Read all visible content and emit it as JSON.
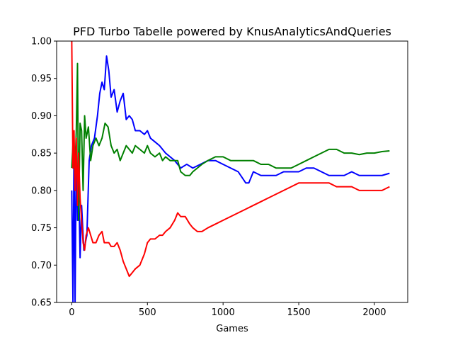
{
  "chart_data": {
    "type": "line",
    "title": "PFD Turbo Tabelle powered by KnusAnalyticsAndQueries",
    "xlabel": "Games",
    "ylabel": "",
    "xlim": [
      -100,
      2220
    ],
    "ylim": [
      0.65,
      1.0
    ],
    "xticks": [
      0,
      500,
      1000,
      1500,
      2000
    ],
    "yticks": [
      0.65,
      0.7,
      0.75,
      0.8,
      0.85,
      0.9,
      0.95,
      1.0
    ],
    "xtick_labels": [
      "0",
      "500",
      "1000",
      "1500",
      "2000"
    ],
    "ytick_labels": [
      "0.65",
      "0.70",
      "0.75",
      "0.80",
      "0.85",
      "0.90",
      "0.95",
      "1.00"
    ],
    "grid": false,
    "legend": "none",
    "series": [
      {
        "color": "#0000ff",
        "points": [
          [
            0,
            0.8
          ],
          [
            8,
            0.65
          ],
          [
            15,
            0.86
          ],
          [
            22,
            0.65
          ],
          [
            30,
            0.86
          ],
          [
            38,
            0.76
          ],
          [
            45,
            0.82
          ],
          [
            55,
            0.71
          ],
          [
            65,
            0.78
          ],
          [
            80,
            0.72
          ],
          [
            100,
            0.74
          ],
          [
            115,
            0.84
          ],
          [
            130,
            0.86
          ],
          [
            150,
            0.87
          ],
          [
            170,
            0.9
          ],
          [
            185,
            0.93
          ],
          [
            200,
            0.945
          ],
          [
            215,
            0.935
          ],
          [
            230,
            0.98
          ],
          [
            245,
            0.96
          ],
          [
            260,
            0.925
          ],
          [
            280,
            0.935
          ],
          [
            300,
            0.905
          ],
          [
            320,
            0.92
          ],
          [
            340,
            0.93
          ],
          [
            360,
            0.895
          ],
          [
            380,
            0.9
          ],
          [
            400,
            0.895
          ],
          [
            420,
            0.88
          ],
          [
            450,
            0.88
          ],
          [
            480,
            0.875
          ],
          [
            500,
            0.88
          ],
          [
            520,
            0.87
          ],
          [
            550,
            0.865
          ],
          [
            580,
            0.86
          ],
          [
            600,
            0.855
          ],
          [
            620,
            0.85
          ],
          [
            650,
            0.845
          ],
          [
            680,
            0.84
          ],
          [
            700,
            0.835
          ],
          [
            720,
            0.83
          ],
          [
            760,
            0.835
          ],
          [
            800,
            0.83
          ],
          [
            850,
            0.835
          ],
          [
            900,
            0.84
          ],
          [
            950,
            0.84
          ],
          [
            1000,
            0.835
          ],
          [
            1050,
            0.83
          ],
          [
            1100,
            0.825
          ],
          [
            1150,
            0.81
          ],
          [
            1170,
            0.81
          ],
          [
            1200,
            0.825
          ],
          [
            1250,
            0.82
          ],
          [
            1300,
            0.82
          ],
          [
            1350,
            0.82
          ],
          [
            1400,
            0.825
          ],
          [
            1450,
            0.825
          ],
          [
            1500,
            0.825
          ],
          [
            1550,
            0.83
          ],
          [
            1600,
            0.83
          ],
          [
            1650,
            0.825
          ],
          [
            1700,
            0.82
          ],
          [
            1750,
            0.82
          ],
          [
            1800,
            0.82
          ],
          [
            1850,
            0.825
          ],
          [
            1900,
            0.82
          ],
          [
            1950,
            0.82
          ],
          [
            2000,
            0.82
          ],
          [
            2050,
            0.82
          ],
          [
            2100,
            0.823
          ]
        ]
      },
      {
        "color": "#008000",
        "points": [
          [
            0,
            0.83
          ],
          [
            10,
            0.87
          ],
          [
            20,
            0.82
          ],
          [
            30,
            0.88
          ],
          [
            38,
            0.97
          ],
          [
            45,
            0.76
          ],
          [
            55,
            0.89
          ],
          [
            65,
            0.88
          ],
          [
            75,
            0.8
          ],
          [
            85,
            0.9
          ],
          [
            95,
            0.87
          ],
          [
            110,
            0.885
          ],
          [
            125,
            0.84
          ],
          [
            140,
            0.86
          ],
          [
            160,
            0.87
          ],
          [
            180,
            0.86
          ],
          [
            200,
            0.87
          ],
          [
            220,
            0.89
          ],
          [
            240,
            0.885
          ],
          [
            260,
            0.86
          ],
          [
            280,
            0.85
          ],
          [
            300,
            0.855
          ],
          [
            320,
            0.84
          ],
          [
            340,
            0.85
          ],
          [
            360,
            0.86
          ],
          [
            380,
            0.855
          ],
          [
            400,
            0.85
          ],
          [
            420,
            0.86
          ],
          [
            450,
            0.855
          ],
          [
            480,
            0.85
          ],
          [
            500,
            0.86
          ],
          [
            520,
            0.85
          ],
          [
            550,
            0.845
          ],
          [
            580,
            0.85
          ],
          [
            600,
            0.84
          ],
          [
            620,
            0.845
          ],
          [
            650,
            0.84
          ],
          [
            680,
            0.84
          ],
          [
            700,
            0.84
          ],
          [
            720,
            0.825
          ],
          [
            750,
            0.82
          ],
          [
            780,
            0.82
          ],
          [
            800,
            0.825
          ],
          [
            830,
            0.83
          ],
          [
            860,
            0.835
          ],
          [
            900,
            0.84
          ],
          [
            950,
            0.845
          ],
          [
            1000,
            0.845
          ],
          [
            1050,
            0.84
          ],
          [
            1100,
            0.84
          ],
          [
            1150,
            0.84
          ],
          [
            1200,
            0.84
          ],
          [
            1250,
            0.835
          ],
          [
            1300,
            0.835
          ],
          [
            1350,
            0.83
          ],
          [
            1400,
            0.83
          ],
          [
            1450,
            0.83
          ],
          [
            1500,
            0.835
          ],
          [
            1550,
            0.84
          ],
          [
            1600,
            0.845
          ],
          [
            1650,
            0.85
          ],
          [
            1700,
            0.855
          ],
          [
            1750,
            0.855
          ],
          [
            1800,
            0.85
          ],
          [
            1850,
            0.85
          ],
          [
            1900,
            0.848
          ],
          [
            1950,
            0.85
          ],
          [
            2000,
            0.85
          ],
          [
            2050,
            0.852
          ],
          [
            2100,
            0.853
          ]
        ]
      },
      {
        "color": "#ff0000",
        "points": [
          [
            0,
            1.0
          ],
          [
            8,
            0.83
          ],
          [
            15,
            0.88
          ],
          [
            22,
            0.8
          ],
          [
            30,
            0.87
          ],
          [
            38,
            0.78
          ],
          [
            45,
            0.85
          ],
          [
            55,
            0.79
          ],
          [
            65,
            0.76
          ],
          [
            75,
            0.73
          ],
          [
            85,
            0.72
          ],
          [
            95,
            0.74
          ],
          [
            110,
            0.75
          ],
          [
            125,
            0.74
          ],
          [
            140,
            0.73
          ],
          [
            160,
            0.73
          ],
          [
            180,
            0.74
          ],
          [
            200,
            0.745
          ],
          [
            215,
            0.73
          ],
          [
            230,
            0.73
          ],
          [
            245,
            0.73
          ],
          [
            260,
            0.725
          ],
          [
            280,
            0.725
          ],
          [
            300,
            0.73
          ],
          [
            320,
            0.72
          ],
          [
            340,
            0.705
          ],
          [
            360,
            0.695
          ],
          [
            380,
            0.685
          ],
          [
            400,
            0.69
          ],
          [
            420,
            0.695
          ],
          [
            450,
            0.7
          ],
          [
            480,
            0.715
          ],
          [
            500,
            0.73
          ],
          [
            520,
            0.735
          ],
          [
            550,
            0.735
          ],
          [
            580,
            0.74
          ],
          [
            600,
            0.74
          ],
          [
            620,
            0.745
          ],
          [
            650,
            0.75
          ],
          [
            680,
            0.76
          ],
          [
            700,
            0.77
          ],
          [
            720,
            0.765
          ],
          [
            750,
            0.765
          ],
          [
            780,
            0.755
          ],
          [
            800,
            0.75
          ],
          [
            830,
            0.745
          ],
          [
            860,
            0.745
          ],
          [
            900,
            0.75
          ],
          [
            950,
            0.755
          ],
          [
            1000,
            0.76
          ],
          [
            1050,
            0.765
          ],
          [
            1100,
            0.77
          ],
          [
            1150,
            0.775
          ],
          [
            1200,
            0.78
          ],
          [
            1250,
            0.785
          ],
          [
            1300,
            0.79
          ],
          [
            1350,
            0.795
          ],
          [
            1400,
            0.8
          ],
          [
            1450,
            0.805
          ],
          [
            1500,
            0.81
          ],
          [
            1550,
            0.81
          ],
          [
            1600,
            0.81
          ],
          [
            1650,
            0.81
          ],
          [
            1700,
            0.81
          ],
          [
            1750,
            0.805
          ],
          [
            1800,
            0.805
          ],
          [
            1850,
            0.805
          ],
          [
            1900,
            0.8
          ],
          [
            1950,
            0.8
          ],
          [
            2000,
            0.8
          ],
          [
            2050,
            0.8
          ],
          [
            2100,
            0.805
          ]
        ]
      }
    ]
  }
}
